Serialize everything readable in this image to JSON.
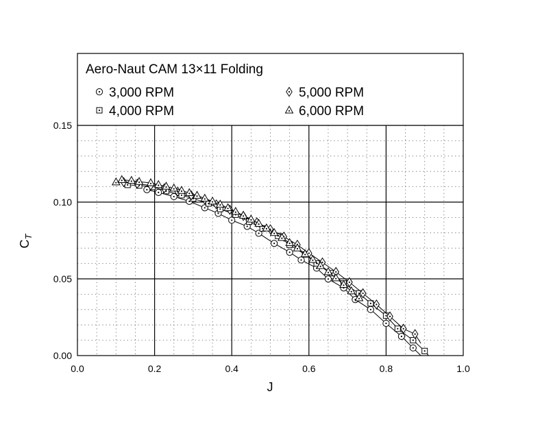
{
  "chart_data": {
    "type": "scatter",
    "title": "Aero-Naut CAM 13×11 Folding",
    "xlabel": "J",
    "ylabel": "C",
    "ylabel_subscript": "T",
    "xlim": [
      0.0,
      1.0
    ],
    "ylim": [
      0.0,
      0.15
    ],
    "xticks": [
      "0.0",
      "0.2",
      "0.4",
      "0.6",
      "0.8",
      "1.0"
    ],
    "yticks": [
      "0.00",
      "0.05",
      "0.10",
      "0.15"
    ],
    "grid": true,
    "legend_position": "top, inside frame",
    "series": [
      {
        "name": "3,000 RPM",
        "marker": "circle-dot",
        "x": [
          0.18,
          0.21,
          0.25,
          0.29,
          0.33,
          0.365,
          0.4,
          0.44,
          0.47,
          0.51,
          0.55,
          0.58,
          0.62,
          0.65,
          0.69,
          0.72,
          0.76,
          0.8,
          0.84,
          0.87
        ],
        "y": [
          0.1081,
          0.1063,
          0.1036,
          0.1005,
          0.0963,
          0.0927,
          0.0882,
          0.0842,
          0.0797,
          0.0731,
          0.0673,
          0.0623,
          0.057,
          0.0499,
          0.0441,
          0.0365,
          0.03,
          0.021,
          0.0125,
          0.005
        ]
      },
      {
        "name": "4,000 RPM",
        "marker": "square-dot",
        "x": [
          0.13,
          0.16,
          0.195,
          0.23,
          0.27,
          0.3,
          0.34,
          0.37,
          0.41,
          0.445,
          0.48,
          0.52,
          0.55,
          0.59,
          0.62,
          0.66,
          0.69,
          0.73,
          0.76,
          0.8,
          0.83,
          0.87,
          0.9
        ],
        "y": [
          0.1112,
          0.1108,
          0.1099,
          0.1072,
          0.1045,
          0.1023,
          0.0991,
          0.0955,
          0.0918,
          0.0873,
          0.0828,
          0.078,
          0.0722,
          0.0659,
          0.0601,
          0.0537,
          0.047,
          0.0406,
          0.034,
          0.026,
          0.0175,
          0.01,
          0.003
        ]
      },
      {
        "name": "5,000 RPM",
        "marker": "diamond-dot",
        "x": [
          0.12,
          0.155,
          0.19,
          0.225,
          0.26,
          0.295,
          0.33,
          0.36,
          0.395,
          0.43,
          0.465,
          0.5,
          0.535,
          0.57,
          0.6,
          0.635,
          0.67,
          0.705,
          0.74,
          0.775,
          0.81,
          0.845,
          0.875
        ],
        "y": [
          0.113,
          0.112,
          0.1108,
          0.109,
          0.1068,
          0.1044,
          0.1017,
          0.0985,
          0.095,
          0.091,
          0.0868,
          0.0823,
          0.0775,
          0.0722,
          0.0667,
          0.0607,
          0.0545,
          0.0478,
          0.0406,
          0.0333,
          0.0255,
          0.0175,
          0.014
        ]
      },
      {
        "name": "6,000 RPM",
        "marker": "triangle-dot",
        "x": [
          0.1,
          0.115,
          0.14,
          0.16,
          0.19,
          0.21,
          0.23,
          0.25,
          0.27,
          0.29,
          0.31,
          0.33,
          0.35,
          0.37,
          0.39,
          0.41,
          0.43,
          0.45,
          0.47,
          0.49,
          0.51,
          0.53,
          0.55,
          0.57,
          0.59,
          0.61,
          0.63,
          0.65,
          0.67,
          0.69,
          0.71,
          0.73
        ],
        "y": [
          0.113,
          0.1145,
          0.114,
          0.1133,
          0.1125,
          0.1113,
          0.1102,
          0.109,
          0.1075,
          0.106,
          0.1043,
          0.1024,
          0.1005,
          0.0985,
          0.0962,
          0.0938,
          0.0913,
          0.0888,
          0.086,
          0.083,
          0.08,
          0.0768,
          0.0735,
          0.07,
          0.0662,
          0.0625,
          0.0585,
          0.0545,
          0.0505,
          0.0462,
          0.042,
          0.0375
        ]
      }
    ]
  }
}
